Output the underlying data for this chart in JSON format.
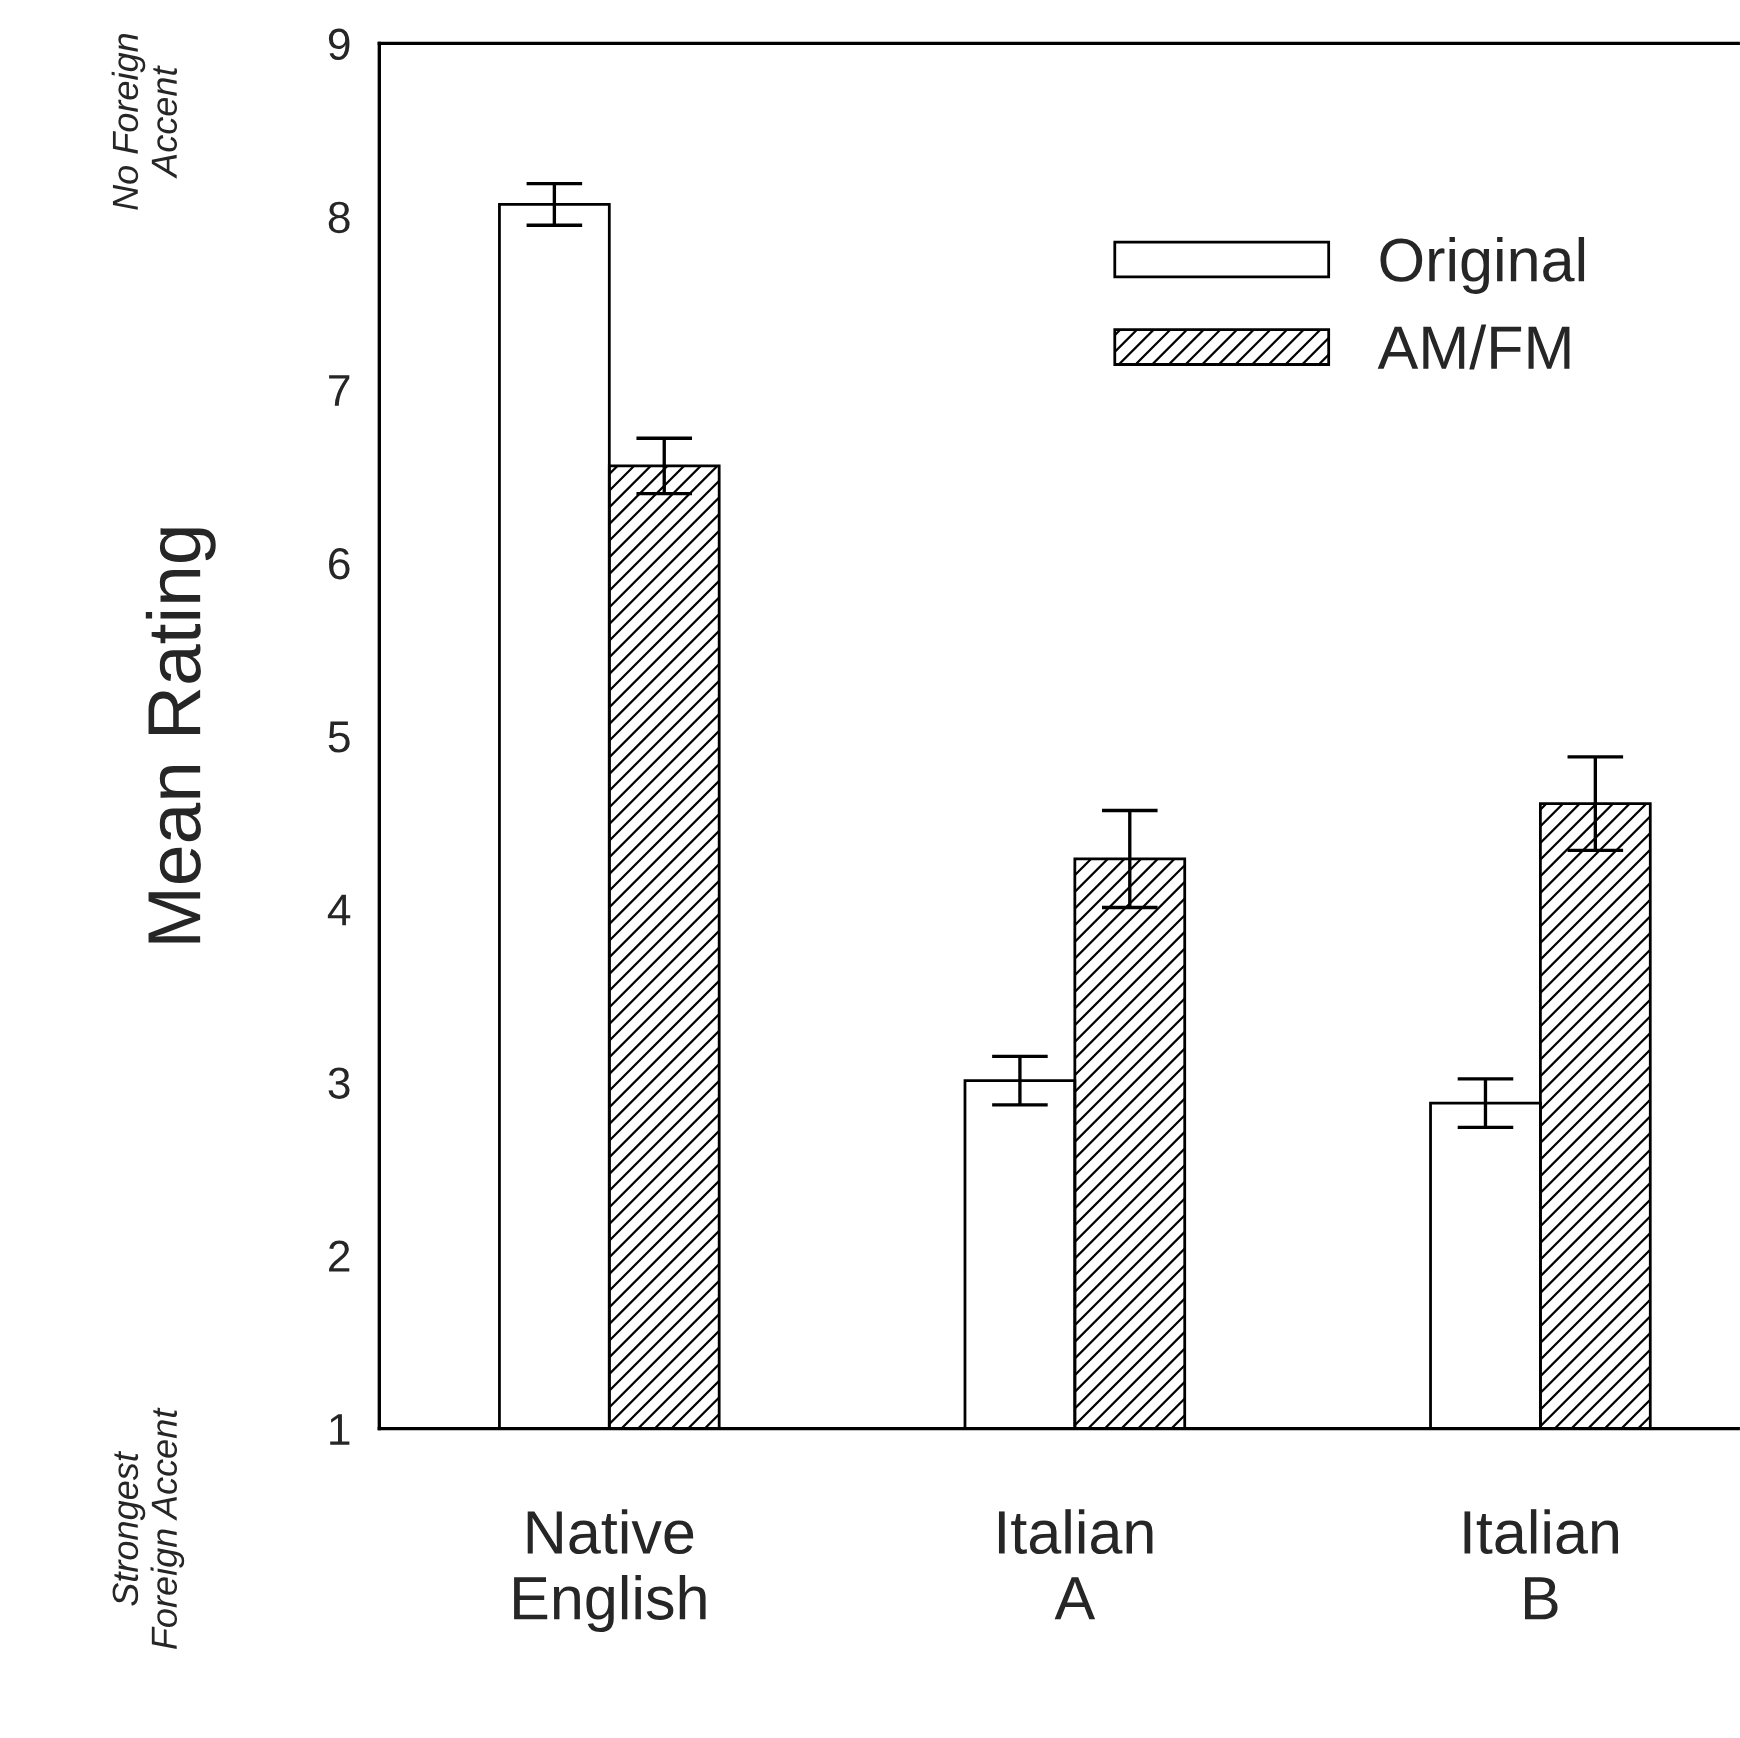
{
  "chart_data": {
    "type": "bar",
    "ylabel": "Mean Rating",
    "categories": [
      "Native\nEnglish",
      "Italian\nA",
      "Italian\nB"
    ],
    "series": [
      {
        "name": "Original",
        "color": "#ffffff",
        "values": [
          8.07,
          3.01,
          2.88
        ],
        "errors": [
          0.12,
          0.14,
          0.14
        ]
      },
      {
        "name": "AM/FM",
        "color": "#000000",
        "values": [
          6.56,
          4.29,
          4.61
        ],
        "errors": [
          0.16,
          0.28,
          0.27
        ]
      }
    ],
    "ylim": [
      1,
      9
    ],
    "yticks": [
      1,
      2,
      3,
      4,
      5,
      6,
      7,
      8,
      9
    ],
    "annotations": [
      "No Foreign\nAccent",
      "Strongest\nForeign Accent"
    ],
    "legend": "top right",
    "grid": false
  }
}
